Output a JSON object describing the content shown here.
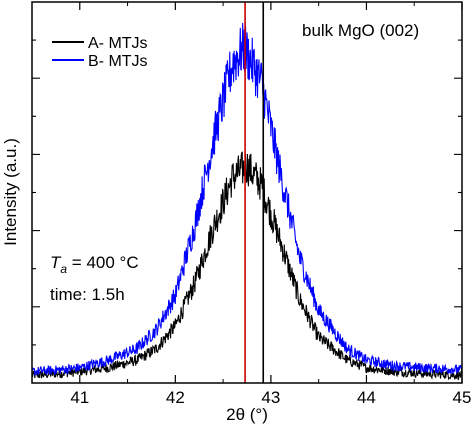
{
  "chart_data": {
    "type": "line",
    "title": "",
    "xlabel": "2θ (°)",
    "ylabel": "Intensity (a.u.)",
    "xlim": [
      40.5,
      45.0
    ],
    "ylim": [
      0,
      1.0
    ],
    "xticks": [
      41,
      42,
      43,
      44,
      45
    ],
    "xtick_labels": [
      "41",
      "42",
      "43",
      "44",
      "45"
    ],
    "yticks_shown": false,
    "grid": false,
    "legend_position": "top-left",
    "series": [
      {
        "name": "A- MTJs",
        "color": "#000000",
        "x": [
          40.5,
          40.8,
          41.0,
          41.3,
          41.6,
          41.8,
          42.0,
          42.2,
          42.4,
          42.6,
          42.75,
          42.9,
          43.1,
          43.3,
          43.5,
          43.8,
          44.0,
          44.3,
          44.6,
          45.0
        ],
        "y": [
          0.02,
          0.025,
          0.03,
          0.04,
          0.06,
          0.09,
          0.15,
          0.26,
          0.41,
          0.54,
          0.57,
          0.52,
          0.37,
          0.22,
          0.12,
          0.06,
          0.04,
          0.03,
          0.025,
          0.02
        ]
      },
      {
        "name": "B- MTJs",
        "color": "#0000ff",
        "x": [
          40.5,
          40.8,
          41.0,
          41.3,
          41.6,
          41.8,
          42.0,
          42.2,
          42.4,
          42.6,
          42.72,
          42.9,
          43.1,
          43.3,
          43.5,
          43.8,
          44.0,
          44.3,
          44.6,
          45.0
        ],
        "y": [
          0.03,
          0.035,
          0.04,
          0.06,
          0.09,
          0.14,
          0.23,
          0.41,
          0.64,
          0.84,
          0.88,
          0.79,
          0.55,
          0.33,
          0.19,
          0.09,
          0.06,
          0.045,
          0.04,
          0.035
        ]
      }
    ],
    "vertical_lines": [
      {
        "x": 42.73,
        "color": "#cc0000"
      },
      {
        "x": 42.92,
        "color": "#000000"
      }
    ],
    "annotations": {
      "bulk_label": "bulk MgO (002)",
      "ta_symbol": "T",
      "ta_sub": "a",
      "ta_value": " = 400 °C",
      "time_label": "time: 1.5h"
    }
  }
}
